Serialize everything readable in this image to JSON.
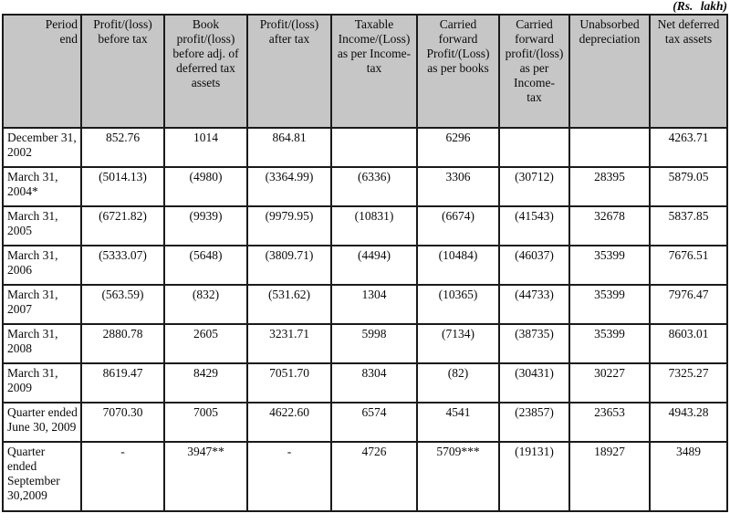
{
  "unit_label": "(Rs. lakh)",
  "table": {
    "columns": [
      {
        "label": "Period\nend"
      },
      {
        "label": "Profit/(loss)\nbefore tax"
      },
      {
        "label": "Book\nprofit/(loss)\nbefore adj. of\ndeferred tax\nassets"
      },
      {
        "label": "Profit/(loss)\nafter tax"
      },
      {
        "label": "Taxable\nIncome/(Loss)\nas per Income-\ntax"
      },
      {
        "label": "Carried\nforward\nProfit/(Loss)\nas per books"
      },
      {
        "label": "Carried\nforward\nprofit/(loss)\nas per\nIncome-\ntax"
      },
      {
        "label": "Unabsorbed\ndepreciation"
      },
      {
        "label": "Net deferred\ntax assets"
      }
    ],
    "rows": [
      {
        "period": "December 31,\n2002",
        "values": [
          "852.76",
          "1014",
          "864.81",
          "",
          "6296",
          "",
          "",
          "4263.71"
        ]
      },
      {
        "period": "March 31,\n2004*",
        "values": [
          "(5014.13)",
          "(4980)",
          "(3364.99)",
          "(6336)",
          "3306",
          "(30712)",
          "28395",
          "5879.05"
        ]
      },
      {
        "period": "March 31,\n2005",
        "values": [
          "(6721.82)",
          "(9939)",
          "(9979.95)",
          "(10831)",
          "(6674)",
          "(41543)",
          "32678",
          "5837.85"
        ]
      },
      {
        "period": "March 31,\n2006",
        "values": [
          "(5333.07)",
          "(5648)",
          "(3809.71)",
          "(4494)",
          "(10484)",
          "(46037)",
          "35399",
          "7676.51"
        ]
      },
      {
        "period": "March 31,\n2007",
        "values": [
          "(563.59)",
          "(832)",
          "(531.62)",
          "1304",
          "(10365)",
          "(44733)",
          "35399",
          "7976.47"
        ]
      },
      {
        "period": "March 31,\n2008",
        "values": [
          "2880.78",
          "2605",
          "3231.71",
          "5998",
          "(7134)",
          "(38735)",
          "35399",
          "8603.01"
        ]
      },
      {
        "period": "March 31,\n2009",
        "values": [
          "8619.47",
          "8429",
          "7051.70",
          "8304",
          "(82)",
          "(30431)",
          "30227",
          "7325.27"
        ]
      },
      {
        "period": "Quarter ended\nJune 30, 2009",
        "values": [
          "7070.30",
          "7005",
          "4622.60",
          "6574",
          "4541",
          "(23857)",
          "23653",
          "4943.28"
        ]
      },
      {
        "period": "Quarter\nended\nSeptember\n30,2009",
        "values": [
          "-",
          "3947**",
          "-",
          "4726",
          "5709***",
          "(19131)",
          "18927",
          "3489"
        ]
      }
    ]
  }
}
